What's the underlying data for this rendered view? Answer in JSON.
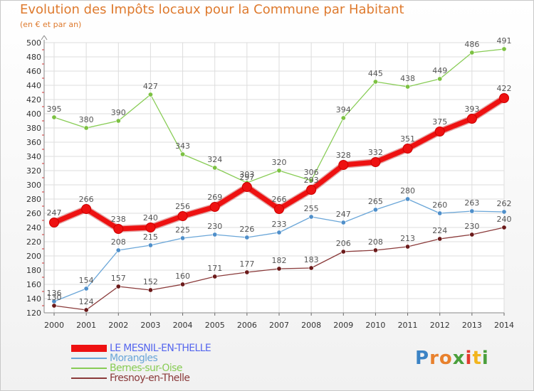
{
  "title": "Evolution des Impôts locaux pour la Commune par Habitant",
  "subtitle": "(en € et par an)",
  "brand": {
    "text": "Proxiti",
    "letters": [
      "P",
      "r",
      "o",
      "x",
      "i",
      "t",
      "i"
    ],
    "colors": [
      "#3b83c5",
      "#e8812d",
      "#e8812d",
      "#4a9f3c",
      "#e33b2e",
      "#f2b51e",
      "#4a9f3c"
    ]
  },
  "chart_data": {
    "type": "line",
    "title": "Evolution des Impôts locaux pour la Commune par Habitant",
    "subtitle": "(en € et par an)",
    "x": [
      "2000",
      "2001",
      "2002",
      "2003",
      "2004",
      "2005",
      "2006",
      "2007",
      "2008",
      "2009",
      "2010",
      "2011",
      "2012",
      "2013",
      "2014"
    ],
    "ylim": [
      120,
      500
    ],
    "yticks": [
      120,
      140,
      160,
      180,
      200,
      220,
      240,
      260,
      280,
      300,
      320,
      340,
      360,
      380,
      400,
      420,
      440,
      460,
      480,
      500
    ],
    "grid": true,
    "legend_position": "bottom-left",
    "series": [
      {
        "name": "Bernes-sur-Oise",
        "color": "#88cc55",
        "marker": "#7cc142",
        "emphasis": false,
        "values": [
          395,
          380,
          390,
          427,
          343,
          324,
          303,
          320,
          306,
          394,
          445,
          438,
          449,
          486,
          491
        ]
      },
      {
        "name": "Morangles",
        "color": "#6aa6d8",
        "marker": "#4f8fca",
        "emphasis": false,
        "values": [
          136,
          154,
          208,
          215,
          225,
          230,
          226,
          233,
          255,
          247,
          265,
          280,
          260,
          263,
          262
        ]
      },
      {
        "name": "Fresnoy-en-Thelle",
        "color": "#8a3a3a",
        "marker": "#6b1a1a",
        "emphasis": false,
        "values": [
          130,
          124,
          157,
          152,
          160,
          171,
          177,
          182,
          183,
          206,
          208,
          213,
          224,
          230,
          240
        ]
      },
      {
        "name": "LE MESNIL-EN-THELLE",
        "color": "#ee1111",
        "marker": "#ee1111",
        "emphasis": true,
        "values": [
          247,
          266,
          238,
          240,
          256,
          269,
          297,
          266,
          293,
          328,
          332,
          351,
          375,
          393,
          422
        ]
      }
    ],
    "legend_order": [
      "LE MESNIL-EN-THELLE",
      "Morangles",
      "Bernes-sur-Oise",
      "Fresnoy-en-Thelle"
    ]
  }
}
